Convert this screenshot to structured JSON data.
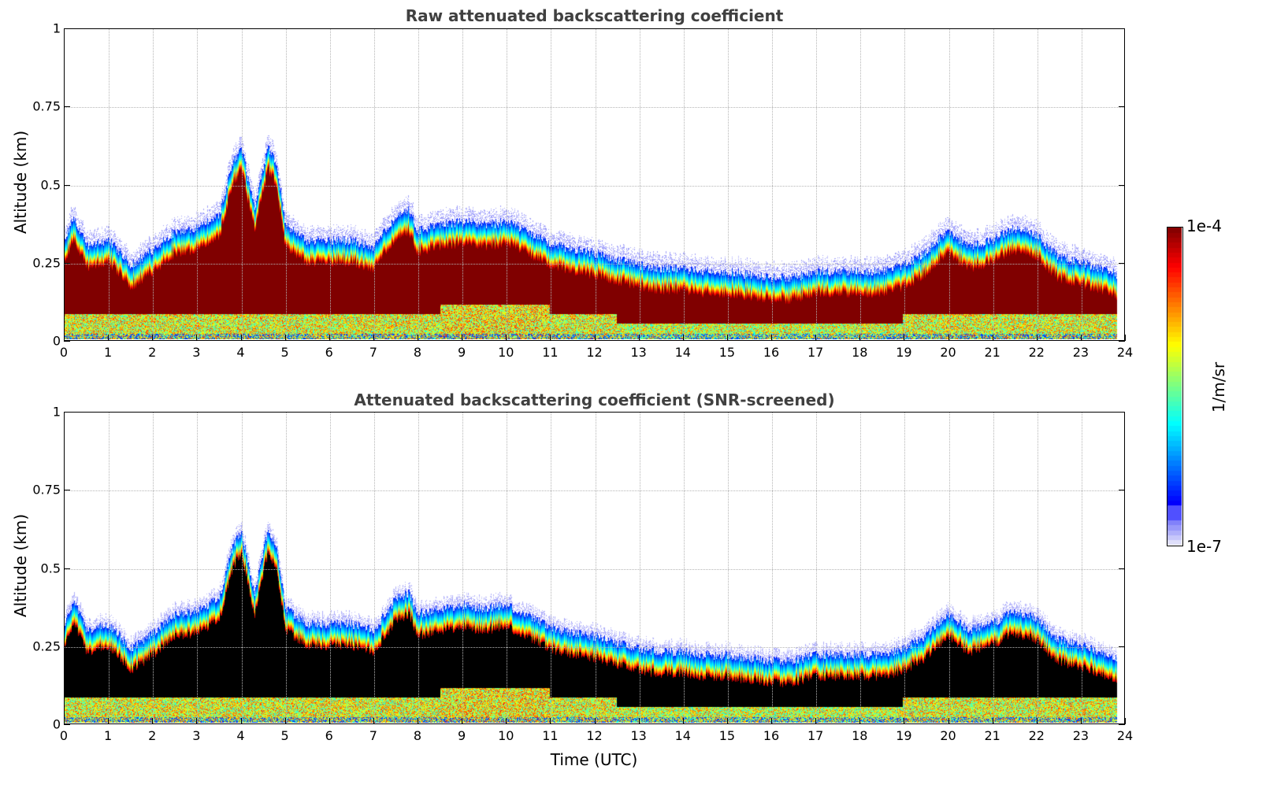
{
  "chart_data": [
    {
      "type": "heatmap",
      "title": "Raw attenuated backscattering coefficient",
      "xlabel": "",
      "ylabel": "Altitude (km)",
      "xlim": [
        0,
        24
      ],
      "ylim": [
        0,
        1
      ],
      "x_ticks": [
        "0",
        "1",
        "2",
        "3",
        "4",
        "5",
        "6",
        "7",
        "8",
        "9",
        "10",
        "11",
        "12",
        "13",
        "14",
        "15",
        "16",
        "17",
        "18",
        "19",
        "20",
        "21",
        "22",
        "23",
        "24"
      ],
      "y_ticks": [
        "0",
        "0.25",
        "0.5",
        "0.75",
        "1"
      ],
      "grid": true,
      "colormap": "jet",
      "color_scale": "log",
      "clim": [
        "1e-7",
        "1e-4"
      ],
      "layer_top_km": {
        "time_utc": [
          0,
          0.2,
          0.5,
          1,
          1.5,
          2,
          2.5,
          3,
          3.5,
          3.8,
          4,
          4.3,
          4.6,
          4.8,
          5,
          5.5,
          6,
          6.5,
          7,
          7.5,
          7.8,
          8,
          8.5,
          9,
          9.5,
          10,
          10.5,
          11,
          11.5,
          12,
          12.5,
          13,
          13.5,
          14,
          14.5,
          15,
          15.5,
          16,
          16.5,
          17,
          17.5,
          18,
          18.5,
          19,
          19.5,
          20,
          20.5,
          21,
          21.5,
          22,
          22.5,
          23,
          23.5,
          23.85
        ],
        "altitude_km": [
          0.3,
          0.38,
          0.28,
          0.3,
          0.22,
          0.27,
          0.33,
          0.34,
          0.38,
          0.55,
          0.6,
          0.4,
          0.6,
          0.55,
          0.35,
          0.3,
          0.3,
          0.3,
          0.28,
          0.38,
          0.4,
          0.33,
          0.35,
          0.36,
          0.35,
          0.36,
          0.33,
          0.29,
          0.27,
          0.26,
          0.24,
          0.22,
          0.21,
          0.21,
          0.2,
          0.2,
          0.19,
          0.18,
          0.18,
          0.2,
          0.2,
          0.2,
          0.2,
          0.22,
          0.26,
          0.33,
          0.28,
          0.3,
          0.34,
          0.32,
          0.25,
          0.23,
          0.21,
          0.19
        ]
      }
    },
    {
      "type": "heatmap",
      "title": "Attenuated backscattering coefficient (SNR-screened)",
      "xlabel": "Time (UTC)",
      "ylabel": "Altitude (km)",
      "xlim": [
        0,
        24
      ],
      "ylim": [
        0,
        1
      ],
      "x_ticks": [
        "0",
        "1",
        "2",
        "3",
        "4",
        "5",
        "6",
        "7",
        "8",
        "9",
        "10",
        "11",
        "12",
        "13",
        "14",
        "15",
        "16",
        "17",
        "18",
        "19",
        "20",
        "21",
        "22",
        "23",
        "24"
      ],
      "y_ticks": [
        "0",
        "0.25",
        "0.5",
        "0.75",
        "1"
      ],
      "grid": true,
      "colormap": "jet",
      "color_scale": "log",
      "clim": [
        "1e-7",
        "1e-4"
      ],
      "saturated_color": "#000000"
    }
  ],
  "colorbar": {
    "max_label": "1e-4",
    "min_label": "1e-7",
    "unit_label": "1/m/sr"
  }
}
